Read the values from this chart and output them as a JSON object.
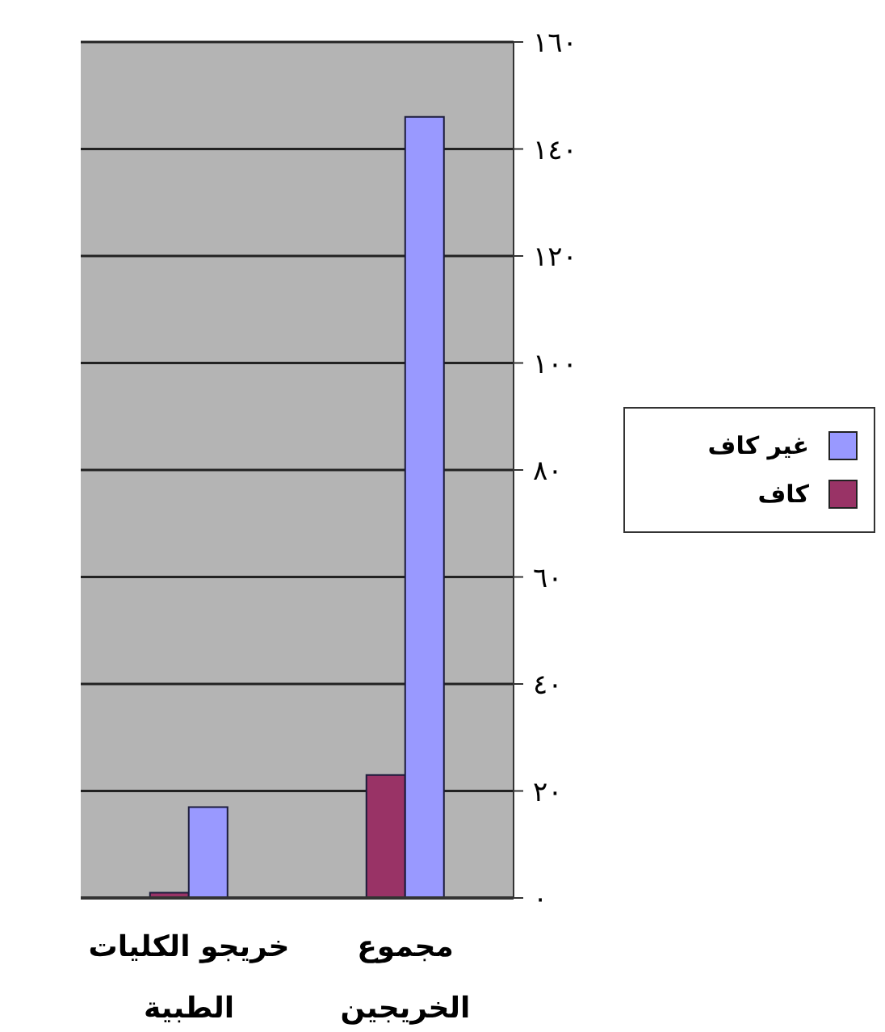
{
  "chart_data": {
    "type": "bar",
    "categories": [
      "خريجو الكليات الطبية",
      "مجموع الخريجين"
    ],
    "series": [
      {
        "name": "غير كاف",
        "color": "#9999ff",
        "values": [
          17,
          146
        ]
      },
      {
        "name": "كاف",
        "color": "#993366",
        "values": [
          1,
          23
        ]
      }
    ],
    "ylim": [
      0,
      160
    ],
    "yticks": [
      {
        "value": 0,
        "label": "٠"
      },
      {
        "value": 20,
        "label": "٢٠"
      },
      {
        "value": 40,
        "label": "٤٠"
      },
      {
        "value": 60,
        "label": "٦٠"
      },
      {
        "value": 80,
        "label": "٨٠"
      },
      {
        "value": 100,
        "label": "١٠٠"
      },
      {
        "value": 120,
        "label": "١٢٠"
      },
      {
        "value": 140,
        "label": "١٤٠"
      },
      {
        "value": 160,
        "label": "١٦٠"
      }
    ],
    "grid": "y",
    "legend": "right"
  }
}
